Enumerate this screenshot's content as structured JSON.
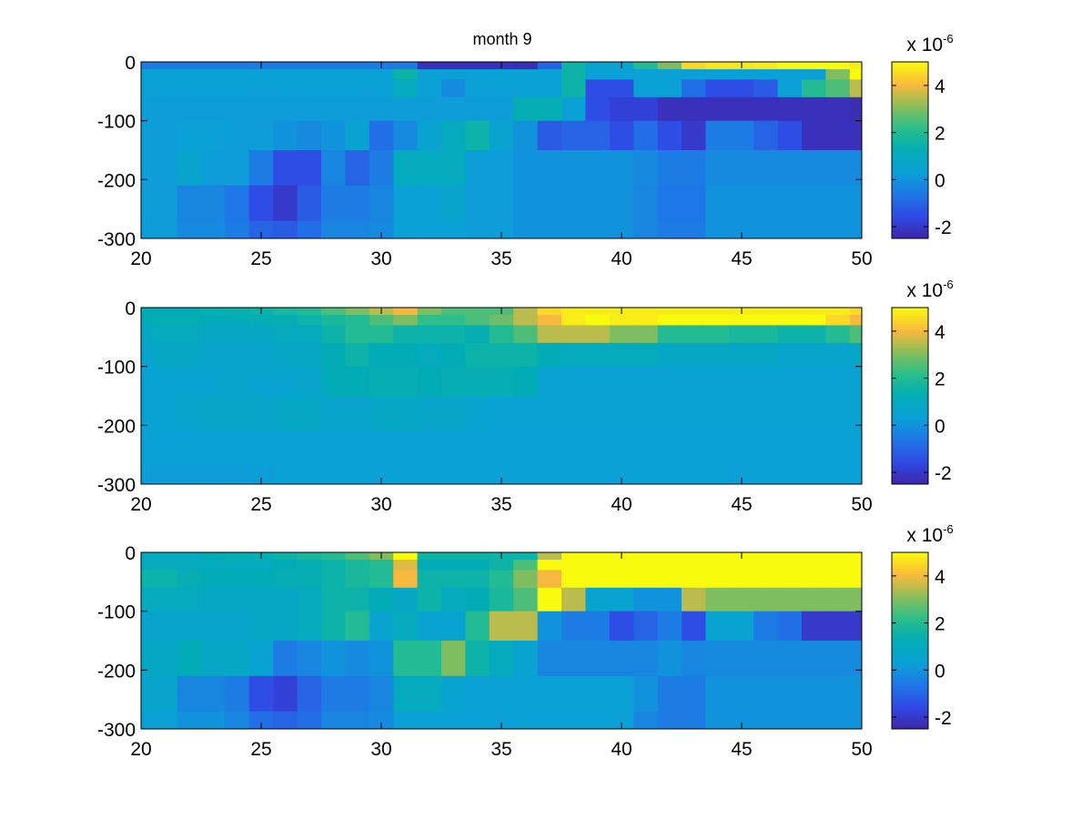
{
  "chart_data": [
    {
      "type": "heatmap",
      "title": "month 9",
      "xlabel": "",
      "ylabel": "",
      "xlim": [
        20,
        50
      ],
      "ylim": [
        -300,
        0
      ],
      "xticks": [
        "20",
        "25",
        "30",
        "35",
        "40",
        "45",
        "50"
      ],
      "yticks": [
        "0",
        "-100",
        "-200",
        "-300"
      ],
      "colorbar": {
        "range": [
          -2.5,
          5
        ],
        "ticks": [
          "4",
          "2",
          "0",
          "-2"
        ],
        "exponent_base": "x 10",
        "exponent_power": "-6"
      },
      "x_columns": [
        20,
        21,
        22,
        23,
        24,
        25,
        26,
        27,
        28,
        29,
        30,
        31,
        32,
        33,
        34,
        35,
        36,
        37,
        38,
        39,
        40,
        41,
        42,
        43,
        44,
        45,
        46,
        47,
        48,
        49,
        50
      ],
      "depth_levels": [
        -5,
        -20,
        -40,
        -80,
        -120,
        -180,
        -240,
        -300
      ],
      "values": [
        [
          -0.5,
          -0.5,
          -0.5,
          -0.5,
          -0.5,
          -0.5,
          -0.5,
          -0.5,
          -0.5,
          -0.5,
          -0.5,
          -0.5,
          -2.2,
          -2.2,
          -2.2,
          -2.2,
          -2.3,
          -1.0,
          1.5,
          0.5,
          0.5,
          2.0,
          3.0,
          4.5,
          4.7,
          4.7,
          4.8,
          5.0,
          5.0,
          5.0,
          4.8
        ],
        [
          0.3,
          0.3,
          0.3,
          0.3,
          0.3,
          0.3,
          0.3,
          0.3,
          0.3,
          0.3,
          0.3,
          1.5,
          0.3,
          0.3,
          0.3,
          0.3,
          0.3,
          0.3,
          1.5,
          0.3,
          0.3,
          0.3,
          0.3,
          0.3,
          0.3,
          0.3,
          0.3,
          0.3,
          0.3,
          3.0,
          5.0
        ],
        [
          0.3,
          0.3,
          0.3,
          0.3,
          0.3,
          0.3,
          0.3,
          0.3,
          0.3,
          0.3,
          0.3,
          1.0,
          0.3,
          -0.2,
          0.3,
          0.3,
          0.3,
          0.3,
          1.5,
          -1.5,
          -1.5,
          0.3,
          0.3,
          -0.8,
          -1.5,
          -1.5,
          -1.2,
          0.3,
          2.0,
          2.5,
          3.5
        ],
        [
          0.2,
          0.2,
          0.2,
          0.2,
          0.2,
          0.2,
          0.2,
          0.2,
          0.2,
          0.2,
          0.2,
          0.2,
          0.2,
          0.2,
          0.2,
          0.2,
          1.3,
          1.3,
          0.3,
          -1.5,
          -1.8,
          -1.8,
          -2.2,
          -2.2,
          -2.2,
          -2.2,
          -2.2,
          -2.2,
          -2.2,
          -2.2,
          -2.3
        ],
        [
          0.2,
          0.2,
          0.3,
          0.3,
          0.2,
          0.2,
          0.0,
          -0.2,
          0.0,
          0.5,
          -0.8,
          -0.2,
          0.5,
          1.0,
          1.5,
          0.5,
          0.0,
          -1.2,
          -1.0,
          -1.0,
          -1.5,
          -0.8,
          -1.5,
          -2.0,
          -0.5,
          -0.5,
          -1.0,
          -1.5,
          -2.2,
          -2.2,
          -2.2
        ],
        [
          0.2,
          0.2,
          0.6,
          0.2,
          0.2,
          -0.5,
          -1.5,
          -1.5,
          -0.3,
          -1.0,
          -0.5,
          1.0,
          1.0,
          1.0,
          0.2,
          0.2,
          0.0,
          0.0,
          0.0,
          0.0,
          0.0,
          -0.2,
          -0.5,
          -0.5,
          -0.2,
          -0.2,
          -0.2,
          -0.2,
          -0.2,
          -0.2,
          -0.2
        ],
        [
          0.2,
          0.2,
          -0.3,
          -0.3,
          -0.6,
          -1.5,
          -2.0,
          -1.2,
          -0.5,
          -0.5,
          -0.3,
          0.3,
          0.3,
          0.6,
          0.2,
          0.2,
          0.0,
          0.0,
          0.0,
          0.0,
          0.0,
          -0.3,
          -0.6,
          -0.6,
          0.0,
          0.0,
          0.0,
          0.0,
          0.0,
          0.0,
          0.0
        ],
        [
          0.2,
          0.2,
          -0.2,
          -0.2,
          -0.5,
          -1.0,
          -1.2,
          -0.8,
          -0.3,
          -0.3,
          -0.2,
          0.3,
          0.3,
          0.3,
          0.2,
          0.2,
          0.0,
          0.0,
          0.0,
          0.0,
          0.0,
          -0.3,
          -0.5,
          -0.5,
          0.0,
          0.0,
          0.0,
          0.0,
          0.0,
          0.0,
          0.0
        ]
      ]
    },
    {
      "type": "heatmap",
      "title": "",
      "xlabel": "",
      "ylabel": "",
      "xlim": [
        20,
        50
      ],
      "ylim": [
        -300,
        0
      ],
      "xticks": [
        "20",
        "25",
        "30",
        "35",
        "40",
        "45",
        "50"
      ],
      "yticks": [
        "0",
        "-100",
        "-200",
        "-300"
      ],
      "colorbar": {
        "range": [
          -2.5,
          5
        ],
        "ticks": [
          "4",
          "2",
          "0",
          "-2"
        ],
        "exponent_base": "x 10",
        "exponent_power": "-6"
      },
      "x_columns": [
        20,
        21,
        22,
        23,
        24,
        25,
        26,
        27,
        28,
        29,
        30,
        31,
        32,
        33,
        34,
        35,
        36,
        37,
        38,
        39,
        40,
        41,
        42,
        43,
        44,
        45,
        46,
        47,
        48,
        49,
        50
      ],
      "depth_levels": [
        -5,
        -20,
        -40,
        -80,
        -120,
        -180,
        -240,
        -300
      ],
      "values": [
        [
          1.2,
          1.2,
          1.2,
          1.3,
          1.4,
          1.5,
          1.8,
          2.0,
          2.5,
          3.0,
          3.5,
          4.0,
          3.0,
          2.5,
          2.5,
          2.5,
          3.5,
          4.5,
          4.8,
          4.8,
          4.8,
          4.8,
          4.8,
          4.8,
          4.8,
          4.8,
          4.8,
          4.8,
          4.8,
          4.8,
          4.5
        ],
        [
          1.2,
          1.3,
          1.3,
          1.2,
          1.2,
          1.3,
          1.3,
          1.5,
          1.8,
          2.0,
          2.5,
          3.0,
          2.2,
          2.2,
          2.5,
          2.8,
          3.5,
          4.0,
          4.8,
          5.0,
          4.8,
          4.8,
          5.0,
          5.0,
          5.0,
          5.0,
          5.0,
          5.0,
          5.0,
          4.5,
          4.0
        ],
        [
          0.8,
          1.0,
          1.0,
          0.8,
          0.8,
          0.8,
          1.0,
          1.0,
          1.5,
          2.0,
          2.0,
          1.5,
          1.5,
          1.5,
          1.3,
          2.0,
          2.5,
          3.5,
          3.5,
          3.5,
          3.0,
          3.0,
          2.0,
          2.0,
          2.0,
          1.8,
          1.8,
          1.5,
          1.5,
          2.0,
          2.5
        ],
        [
          0.5,
          0.8,
          0.8,
          0.6,
          0.6,
          0.6,
          0.8,
          0.8,
          1.2,
          1.5,
          1.2,
          1.2,
          1.0,
          1.2,
          1.5,
          1.5,
          1.5,
          1.2,
          1.0,
          1.0,
          1.0,
          1.0,
          0.8,
          0.8,
          0.8,
          0.8,
          0.8,
          0.6,
          0.6,
          0.6,
          0.8
        ],
        [
          0.4,
          0.5,
          0.5,
          0.5,
          0.6,
          0.5,
          0.5,
          0.6,
          1.2,
          1.2,
          1.3,
          1.3,
          1.2,
          1.3,
          1.3,
          1.3,
          1.2,
          0.4,
          0.4,
          0.4,
          0.4,
          0.4,
          0.4,
          0.4,
          0.4,
          0.4,
          0.4,
          0.4,
          0.4,
          0.4,
          0.4
        ],
        [
          0.4,
          0.5,
          0.6,
          0.7,
          0.7,
          0.7,
          0.8,
          0.8,
          0.6,
          0.6,
          0.8,
          0.8,
          0.7,
          0.7,
          0.5,
          0.4,
          0.4,
          0.4,
          0.4,
          0.4,
          0.4,
          0.4,
          0.4,
          0.4,
          0.4,
          0.4,
          0.4,
          0.4,
          0.4,
          0.4,
          0.4
        ],
        [
          0.3,
          0.3,
          0.3,
          0.3,
          0.3,
          0.3,
          0.3,
          0.3,
          0.3,
          0.3,
          0.3,
          0.3,
          0.3,
          0.3,
          0.3,
          0.3,
          0.3,
          0.3,
          0.3,
          0.3,
          0.3,
          0.3,
          0.3,
          0.3,
          0.3,
          0.3,
          0.3,
          0.3,
          0.3,
          0.3,
          0.3
        ],
        [
          0.2,
          0.2,
          0.2,
          0.2,
          0.2,
          0.2,
          0.3,
          0.3,
          0.3,
          0.3,
          0.3,
          0.3,
          0.3,
          0.3,
          0.3,
          0.3,
          0.3,
          0.3,
          0.3,
          0.3,
          0.3,
          0.3,
          0.3,
          0.3,
          0.3,
          0.3,
          0.3,
          0.3,
          0.3,
          0.3,
          0.3
        ]
      ]
    },
    {
      "type": "heatmap",
      "title": "",
      "xlabel": "",
      "ylabel": "",
      "xlim": [
        20,
        50
      ],
      "ylim": [
        -300,
        0
      ],
      "xticks": [
        "20",
        "25",
        "30",
        "35",
        "40",
        "45",
        "50"
      ],
      "yticks": [
        "0",
        "-100",
        "-200",
        "-300"
      ],
      "colorbar": {
        "range": [
          -2.5,
          5
        ],
        "ticks": [
          "4",
          "2",
          "0",
          "-2"
        ],
        "exponent_base": "x 10",
        "exponent_power": "-6"
      },
      "x_columns": [
        20,
        21,
        22,
        23,
        24,
        25,
        26,
        27,
        28,
        29,
        30,
        31,
        32,
        33,
        34,
        35,
        36,
        37,
        38,
        39,
        40,
        41,
        42,
        43,
        44,
        45,
        46,
        47,
        48,
        49,
        50
      ],
      "depth_levels": [
        -5,
        -20,
        -40,
        -80,
        -120,
        -180,
        -240,
        -300
      ],
      "values": [
        [
          1.0,
          1.0,
          1.0,
          1.2,
          1.3,
          1.3,
          1.5,
          1.8,
          2.0,
          2.5,
          3.0,
          5.0,
          1.5,
          1.5,
          1.5,
          1.5,
          1.5,
          3.5,
          5.0,
          5.0,
          5.0,
          5.0,
          5.0,
          5.0,
          5.0,
          5.0,
          5.0,
          5.0,
          5.0,
          5.0,
          5.0
        ],
        [
          1.0,
          1.0,
          1.0,
          1.0,
          1.0,
          1.0,
          1.2,
          1.3,
          1.5,
          1.8,
          2.0,
          3.8,
          1.2,
          1.2,
          1.2,
          1.5,
          2.5,
          5.0,
          5.0,
          5.0,
          5.0,
          5.0,
          5.0,
          5.0,
          5.0,
          5.0,
          5.0,
          5.0,
          5.0,
          5.0,
          5.0
        ],
        [
          1.5,
          1.5,
          1.3,
          1.2,
          1.2,
          1.2,
          1.3,
          1.3,
          1.5,
          1.8,
          2.0,
          4.0,
          1.5,
          1.5,
          1.5,
          2.0,
          3.0,
          4.0,
          5.0,
          5.0,
          5.0,
          5.0,
          5.0,
          5.0,
          5.0,
          5.0,
          5.0,
          5.0,
          5.0,
          5.0,
          5.0
        ],
        [
          1.0,
          1.0,
          1.0,
          0.8,
          0.8,
          0.8,
          0.8,
          1.0,
          1.5,
          1.5,
          1.2,
          0.8,
          1.5,
          1.0,
          1.2,
          1.8,
          2.5,
          5.0,
          3.5,
          0.5,
          0.5,
          0.0,
          0.0,
          3.5,
          3.0,
          3.0,
          3.0,
          3.0,
          3.0,
          3.0,
          3.0
        ],
        [
          0.5,
          0.6,
          0.6,
          0.6,
          0.6,
          0.8,
          0.8,
          1.0,
          1.5,
          2.0,
          0.5,
          1.0,
          0.5,
          0.5,
          2.0,
          3.5,
          3.5,
          0.0,
          -0.5,
          -0.5,
          -1.5,
          -1.0,
          -0.5,
          -1.5,
          0.5,
          0.5,
          -0.5,
          -0.8,
          -2.0,
          -2.0,
          -2.0
        ],
        [
          0.8,
          0.8,
          1.2,
          0.8,
          0.8,
          0.5,
          -0.5,
          -0.3,
          0.0,
          -0.2,
          0.0,
          2.0,
          2.0,
          3.0,
          1.5,
          1.0,
          0.5,
          -0.3,
          -0.3,
          -0.3,
          -0.3,
          -0.3,
          0.0,
          -0.3,
          -0.2,
          -0.2,
          -0.2,
          -0.2,
          -0.2,
          -0.2,
          -0.2
        ],
        [
          0.6,
          0.6,
          -0.3,
          -0.3,
          -0.5,
          -1.5,
          -1.8,
          -1.0,
          -0.5,
          -0.5,
          -0.3,
          1.0,
          1.0,
          0.5,
          0.3,
          0.3,
          0.3,
          0.3,
          0.3,
          0.3,
          0.3,
          0.0,
          -0.5,
          -0.5,
          0.0,
          0.0,
          0.0,
          0.0,
          0.0,
          0.0,
          0.0
        ],
        [
          0.3,
          0.3,
          0.0,
          0.0,
          -0.3,
          -0.8,
          -1.0,
          -0.8,
          -0.3,
          -0.3,
          -0.2,
          0.3,
          0.3,
          0.3,
          0.3,
          0.3,
          0.3,
          0.3,
          0.3,
          0.3,
          0.3,
          -0.3,
          -0.5,
          -0.5,
          0.0,
          0.0,
          0.0,
          0.0,
          0.0,
          0.0,
          0.0
        ]
      ]
    }
  ]
}
